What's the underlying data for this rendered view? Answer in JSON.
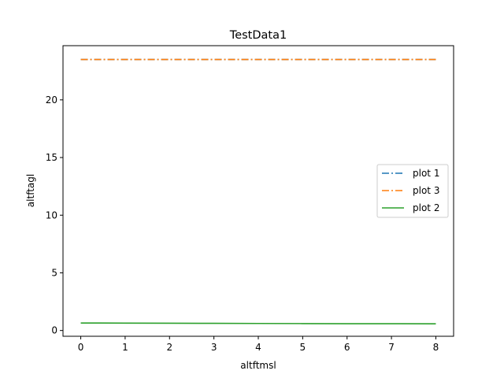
{
  "chart_data": {
    "type": "line",
    "title": "TestData1",
    "xlabel": "altftmsl",
    "ylabel": "altftagl",
    "xlim": [
      -0.4,
      8.4
    ],
    "ylim": [
      -0.5,
      24.7
    ],
    "x_ticks": [
      0,
      1,
      2,
      3,
      4,
      5,
      6,
      7,
      8
    ],
    "y_ticks": [
      0,
      5,
      10,
      15,
      20
    ],
    "grid": false,
    "legend_position": "center-right",
    "x": [
      0,
      1,
      2,
      3,
      4,
      5,
      6,
      7,
      8
    ],
    "series": [
      {
        "name": "plot 1",
        "color": "#1f77b4",
        "style": "dashdot",
        "values": [
          23.5,
          23.5,
          23.5,
          23.5,
          23.5,
          23.5,
          23.5,
          23.5,
          23.5
        ]
      },
      {
        "name": "plot 3",
        "color": "#ff7f0e",
        "style": "dashdot",
        "values": [
          23.5,
          23.5,
          23.5,
          23.5,
          23.5,
          23.5,
          23.5,
          23.5,
          23.5
        ]
      },
      {
        "name": "plot 2",
        "color": "#2ca02c",
        "style": "solid",
        "values": [
          0.65,
          0.64,
          0.63,
          0.62,
          0.61,
          0.6,
          0.59,
          0.59,
          0.58
        ]
      }
    ]
  }
}
